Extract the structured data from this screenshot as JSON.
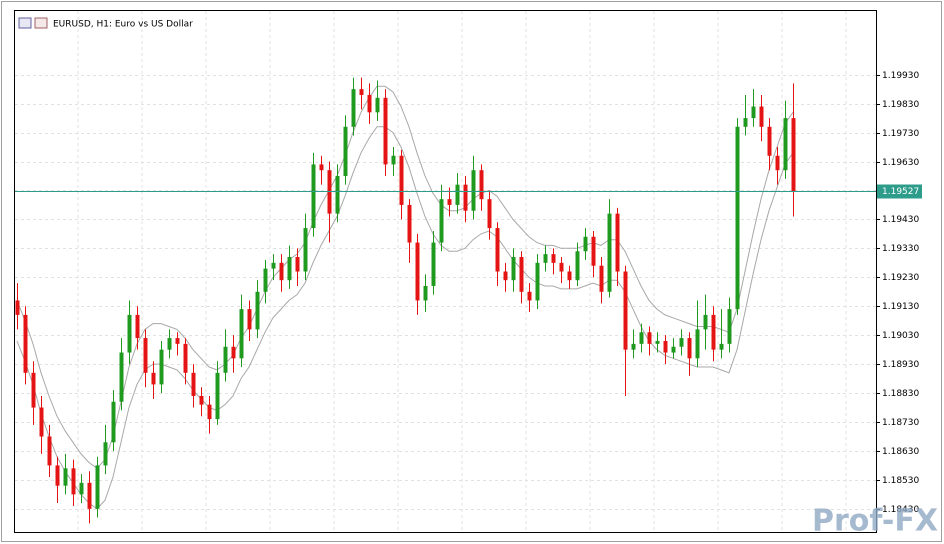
{
  "chart_data": {
    "type": "candlestick",
    "title": "EURUSD, H1:  Euro vs US Dollar",
    "watermark": "Prof-FX",
    "ylim": [
      1.1835,
      1.2015
    ],
    "yticks": [
      {
        "value": 1.1993,
        "label": "1.19930"
      },
      {
        "value": 1.1983,
        "label": "1.19830"
      },
      {
        "value": 1.1973,
        "label": "1.19730"
      },
      {
        "value": 1.1963,
        "label": "1.19630"
      },
      {
        "value": 1.1953,
        "label": "1.19530"
      },
      {
        "value": 1.1943,
        "label": "1.19430"
      },
      {
        "value": 1.1933,
        "label": "1.19330"
      },
      {
        "value": 1.1923,
        "label": "1.19230"
      },
      {
        "value": 1.1913,
        "label": "1.19130"
      },
      {
        "value": 1.1903,
        "label": "1.19030"
      },
      {
        "value": 1.1893,
        "label": "1.18930"
      },
      {
        "value": 1.1883,
        "label": "1.18830"
      },
      {
        "value": 1.1873,
        "label": "1.18730"
      },
      {
        "value": 1.1863,
        "label": "1.18630"
      },
      {
        "value": 1.1853,
        "label": "1.18530"
      },
      {
        "value": 1.1843,
        "label": "1.18430"
      }
    ],
    "grid": true,
    "up_color": "#1f9a1f",
    "down_color": "#e41414",
    "last_price": 1.19527,
    "last_price_color": "#2e9c8a",
    "open": [
      1.1915,
      1.191,
      1.189,
      1.1878,
      1.1868,
      1.1858,
      1.1851,
      1.1857,
      1.1848,
      1.1852,
      1.1843,
      1.1858,
      1.1866,
      1.188,
      1.1897,
      1.191,
      1.1902,
      1.189,
      1.1886,
      1.1898,
      1.1902,
      1.19,
      1.189,
      1.1882,
      1.1879,
      1.1874,
      1.189,
      1.1899,
      1.1895,
      1.1912,
      1.1905,
      1.1918,
      1.1926,
      1.1928,
      1.1922,
      1.193,
      1.1925,
      1.194,
      1.1962,
      1.196,
      1.1945,
      1.1958,
      1.1975,
      1.1988,
      1.1986,
      1.198,
      1.1985,
      1.1962,
      1.1965,
      1.1948,
      1.1935,
      1.1915,
      1.192,
      1.1935,
      1.195,
      1.1948,
      1.1955,
      1.1946,
      1.196,
      1.195,
      1.194,
      1.1925,
      1.1922,
      1.193,
      1.1918,
      1.1915,
      1.1928,
      1.1931,
      1.1928,
      1.1925,
      1.1922,
      1.1932,
      1.1937,
      1.1927,
      1.1918,
      1.1945,
      1.1925,
      1.1898,
      1.19,
      1.1904,
      1.19,
      1.1901,
      1.1897,
      1.1899,
      1.1902,
      1.1895,
      1.1905,
      1.191,
      1.1898,
      1.19,
      1.1912,
      1.1975,
      1.1978,
      1.1982,
      1.1975,
      1.1965,
      1.196,
      1.1978
    ],
    "high": [
      1.1921,
      1.1913,
      1.1894,
      1.1882,
      1.1872,
      1.1861,
      1.1862,
      1.186,
      1.1855,
      1.1856,
      1.1861,
      1.1872,
      1.1884,
      1.1902,
      1.1915,
      1.1913,
      1.1905,
      1.1894,
      1.1901,
      1.1905,
      1.1904,
      1.1902,
      1.1893,
      1.1885,
      1.1882,
      1.1894,
      1.1905,
      1.1903,
      1.1917,
      1.1915,
      1.1922,
      1.1929,
      1.1931,
      1.1931,
      1.1934,
      1.1933,
      1.1945,
      1.1966,
      1.1965,
      1.1963,
      1.1962,
      1.1979,
      1.1992,
      1.1992,
      1.199,
      1.1991,
      1.1988,
      1.1968,
      1.1967,
      1.195,
      1.1938,
      1.1924,
      1.1939,
      1.1955,
      1.1954,
      1.1959,
      1.1958,
      1.1965,
      1.1962,
      1.1953,
      1.1942,
      1.1928,
      1.1933,
      1.1932,
      1.1921,
      1.1931,
      1.1934,
      1.1933,
      1.193,
      1.1927,
      1.1935,
      1.194,
      1.1939,
      1.193,
      1.195,
      1.1947,
      1.1927,
      1.1905,
      1.1907,
      1.1906,
      1.1904,
      1.1903,
      1.1902,
      1.1905,
      1.1904,
      1.1915,
      1.1917,
      1.1913,
      1.1912,
      1.1916,
      1.1978,
      1.1986,
      1.1988,
      1.1986,
      1.1978,
      1.1968,
      1.1984,
      1.199
    ],
    "low": [
      1.1905,
      1.1886,
      1.1872,
      1.1862,
      1.1854,
      1.1845,
      1.1848,
      1.1844,
      1.1845,
      1.1838,
      1.184,
      1.1855,
      1.1863,
      1.1877,
      1.1893,
      1.1898,
      1.1885,
      1.1881,
      1.1883,
      1.1895,
      1.1896,
      1.1886,
      1.1878,
      1.1875,
      1.1869,
      1.1872,
      1.1887,
      1.189,
      1.1892,
      1.1901,
      1.1902,
      1.1914,
      1.1922,
      1.1918,
      1.1919,
      1.192,
      1.1922,
      1.1937,
      1.1955,
      1.1935,
      1.1942,
      1.1955,
      1.1972,
      1.1981,
      1.1976,
      1.1977,
      1.1958,
      1.1958,
      1.1943,
      1.1928,
      1.191,
      1.1911,
      1.1917,
      1.1932,
      1.1944,
      1.1945,
      1.1942,
      1.1943,
      1.1946,
      1.1936,
      1.192,
      1.1918,
      1.1918,
      1.1914,
      1.1911,
      1.1912,
      1.1925,
      1.1924,
      1.1921,
      1.1919,
      1.192,
      1.1929,
      1.1923,
      1.1914,
      1.1916,
      1.192,
      1.1882,
      1.1895,
      1.1897,
      1.1896,
      1.1897,
      1.1893,
      1.1895,
      1.1896,
      1.1889,
      1.1892,
      1.1898,
      1.1894,
      1.1895,
      1.1897,
      1.191,
      1.1972,
      1.1975,
      1.197,
      1.196,
      1.1955,
      1.1957,
      1.1944
    ],
    "close": [
      1.191,
      1.189,
      1.1878,
      1.1868,
      1.1858,
      1.1851,
      1.1857,
      1.1848,
      1.1852,
      1.1843,
      1.1858,
      1.1866,
      1.188,
      1.1897,
      1.191,
      1.1902,
      1.189,
      1.1886,
      1.1898,
      1.1902,
      1.19,
      1.189,
      1.1882,
      1.1879,
      1.1874,
      1.189,
      1.1899,
      1.1895,
      1.1912,
      1.1905,
      1.1918,
      1.1926,
      1.1928,
      1.1922,
      1.193,
      1.1925,
      1.194,
      1.1962,
      1.196,
      1.1945,
      1.1958,
      1.1975,
      1.1988,
      1.1986,
      1.198,
      1.1985,
      1.1962,
      1.1965,
      1.1948,
      1.1935,
      1.1915,
      1.192,
      1.1935,
      1.195,
      1.1948,
      1.1955,
      1.1946,
      1.196,
      1.195,
      1.194,
      1.1925,
      1.1922,
      1.193,
      1.1918,
      1.1915,
      1.1928,
      1.1931,
      1.1928,
      1.1925,
      1.1922,
      1.1932,
      1.1937,
      1.1927,
      1.1918,
      1.1945,
      1.1925,
      1.1898,
      1.19,
      1.1904,
      1.19,
      1.1901,
      1.1897,
      1.1899,
      1.1902,
      1.1895,
      1.1905,
      1.191,
      1.1898,
      1.19,
      1.1912,
      1.1975,
      1.1978,
      1.1982,
      1.1975,
      1.1965,
      1.196,
      1.1978,
      1.19527
    ],
    "series": [
      {
        "color": "#a8a8a8",
        "values": [
          1.1915,
          1.1908,
          1.19,
          1.189,
          1.1882,
          1.1875,
          1.187,
          1.1866,
          1.1862,
          1.1859,
          1.1857,
          1.186,
          1.1868,
          1.188,
          1.1892,
          1.19,
          1.1905,
          1.1907,
          1.1907,
          1.1906,
          1.1905,
          1.1902,
          1.1898,
          1.1895,
          1.1892,
          1.1891,
          1.1893,
          1.1896,
          1.1902,
          1.1906,
          1.1912,
          1.1918,
          1.1923,
          1.1926,
          1.1929,
          1.1931,
          1.1935,
          1.1942,
          1.1948,
          1.1953,
          1.1958,
          1.1965,
          1.1973,
          1.198,
          1.1985,
          1.1989,
          1.1989,
          1.1987,
          1.1982,
          1.1975,
          1.1966,
          1.1958,
          1.1952,
          1.1948,
          1.1946,
          1.1946,
          1.1947,
          1.195,
          1.1952,
          1.1953,
          1.1951,
          1.1947,
          1.1943,
          1.194,
          1.1937,
          1.1935,
          1.1934,
          1.1934,
          1.1933,
          1.1933,
          1.1933,
          1.1934,
          1.1935,
          1.1934,
          1.1936,
          1.1936,
          1.1932,
          1.1926,
          1.192,
          1.1915,
          1.1912,
          1.191,
          1.1909,
          1.1908,
          1.1907,
          1.1906,
          1.1906,
          1.1906,
          1.1905,
          1.1904,
          1.1912,
          1.1925,
          1.1938,
          1.195,
          1.196,
          1.1968,
          1.1976,
          1.198
        ]
      },
      {
        "color": "#a8a8a8",
        "values": [
          1.1901,
          1.1894,
          1.1886,
          1.1876,
          1.1868,
          1.1861,
          1.1856,
          1.1852,
          1.1848,
          1.1845,
          1.1843,
          1.1846,
          1.1854,
          1.1866,
          1.1878,
          1.1886,
          1.1891,
          1.1893,
          1.1893,
          1.1892,
          1.1891,
          1.1888,
          1.1884,
          1.1881,
          1.1878,
          1.1877,
          1.1879,
          1.1882,
          1.1888,
          1.1892,
          1.1898,
          1.1904,
          1.1909,
          1.1912,
          1.1915,
          1.1917,
          1.1921,
          1.1928,
          1.1934,
          1.1939,
          1.1944,
          1.1951,
          1.1959,
          1.1966,
          1.1971,
          1.1975,
          1.1975,
          1.1973,
          1.1968,
          1.1961,
          1.1952,
          1.1944,
          1.1938,
          1.1934,
          1.1932,
          1.1932,
          1.1933,
          1.1936,
          1.1938,
          1.1939,
          1.1937,
          1.1933,
          1.1929,
          1.1926,
          1.1923,
          1.1921,
          1.192,
          1.192,
          1.1919,
          1.1919,
          1.1919,
          1.192,
          1.1921,
          1.192,
          1.1922,
          1.1922,
          1.1918,
          1.1912,
          1.1906,
          1.1901,
          1.1898,
          1.1896,
          1.1895,
          1.1894,
          1.1893,
          1.1892,
          1.1892,
          1.1892,
          1.1891,
          1.189,
          1.1898,
          1.1911,
          1.1924,
          1.1936,
          1.1946,
          1.1954,
          1.1962,
          1.1966
        ]
      }
    ]
  }
}
